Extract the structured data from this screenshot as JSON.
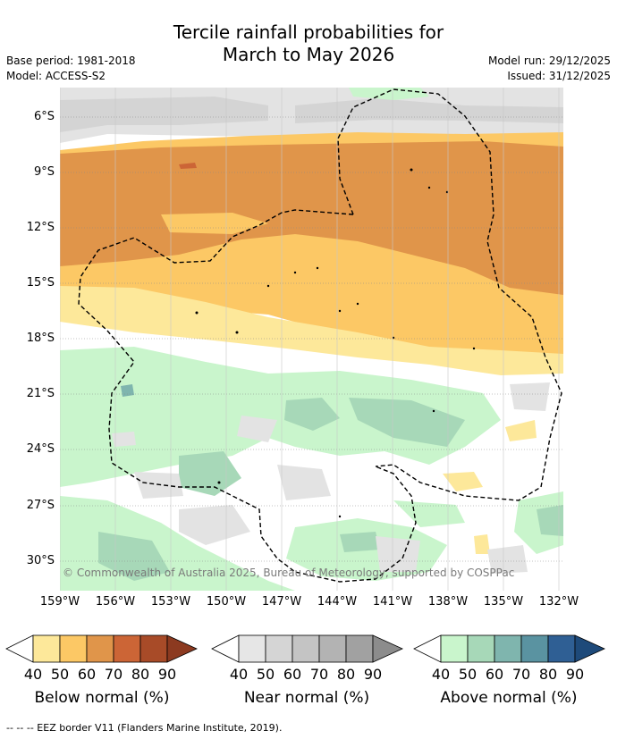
{
  "title": {
    "line1": "Tercile rainfall probabilities for",
    "line2": "March to May 2026"
  },
  "meta": {
    "base_period": "Base period: 1981-2018",
    "model": "Model: ACCESS-S2",
    "model_run": "Model run: 29/12/2025",
    "issued": "Issued: 31/12/2025"
  },
  "axes": {
    "latitude_labels": [
      "6°S",
      "9°S",
      "12°S",
      "15°S",
      "18°S",
      "21°S",
      "24°S",
      "27°S",
      "30°S"
    ],
    "longitude_labels": [
      "159°W",
      "156°W",
      "153°W",
      "150°W",
      "147°W",
      "144°W",
      "141°W",
      "138°W",
      "135°W",
      "132°W"
    ]
  },
  "copyright": "© Commonwealth of Australia 2025, Bureau of Meteorology, supported by COSPPac",
  "legends": [
    {
      "title": "Below normal (%)",
      "ticks": [
        "40",
        "50",
        "60",
        "70",
        "80",
        "90"
      ],
      "colors": [
        "#ffffff",
        "#fde89a",
        "#fcc865",
        "#e0954a",
        "#cc6536",
        "#a84b28",
        "#8c3a20"
      ]
    },
    {
      "title": "Near normal (%)",
      "ticks": [
        "40",
        "50",
        "60",
        "70",
        "80",
        "90"
      ],
      "colors": [
        "#ffffff",
        "#e6e6e6",
        "#d5d5d5",
        "#c4c4c4",
        "#b3b3b3",
        "#a1a1a1",
        "#8c8c8c"
      ]
    },
    {
      "title": "Above normal (%)",
      "ticks": [
        "40",
        "50",
        "60",
        "70",
        "80",
        "90"
      ],
      "colors": [
        "#ffffff",
        "#c9f5cc",
        "#a7d8b8",
        "#7fb5ae",
        "#5a93a1",
        "#2f5f94",
        "#1e4a7a"
      ]
    }
  ],
  "footnote": "-- -- -- EEZ border V11 (Flanders Marine Institute, 2019)."
}
